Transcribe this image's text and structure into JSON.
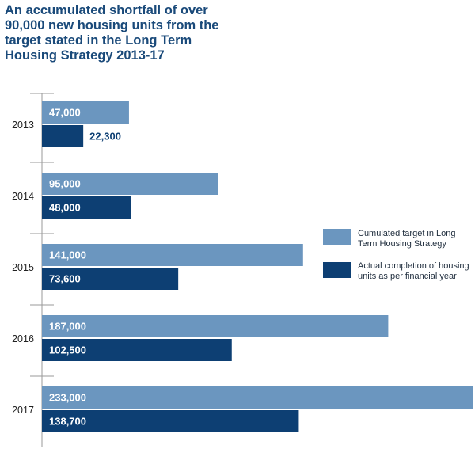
{
  "chart_data": {
    "type": "bar",
    "orientation": "horizontal",
    "title": "An accumulated shortfall of over 90,000 new housing units from the target stated in the Long Term Housing Strategy 2013-17",
    "categories": [
      "2013",
      "2014",
      "2015",
      "2016",
      "2017"
    ],
    "series": [
      {
        "name": "Cumulated target in Long Term Housing Strategy",
        "color": "#6b96bf",
        "values": [
          47000,
          95000,
          141000,
          187000,
          233000
        ],
        "labels": [
          "47,000",
          "95,000",
          "141,000",
          "187,000",
          "233,000"
        ]
      },
      {
        "name": "Actual completion of housing units as per financial year",
        "color": "#0d3f73",
        "values": [
          22300,
          48000,
          73600,
          102500,
          138700
        ],
        "labels": [
          "22,300",
          "48,000",
          "73,600",
          "102,500",
          "138,700"
        ]
      }
    ],
    "xlim": [
      0,
      233000
    ],
    "grid": false,
    "legend_position": "right"
  }
}
